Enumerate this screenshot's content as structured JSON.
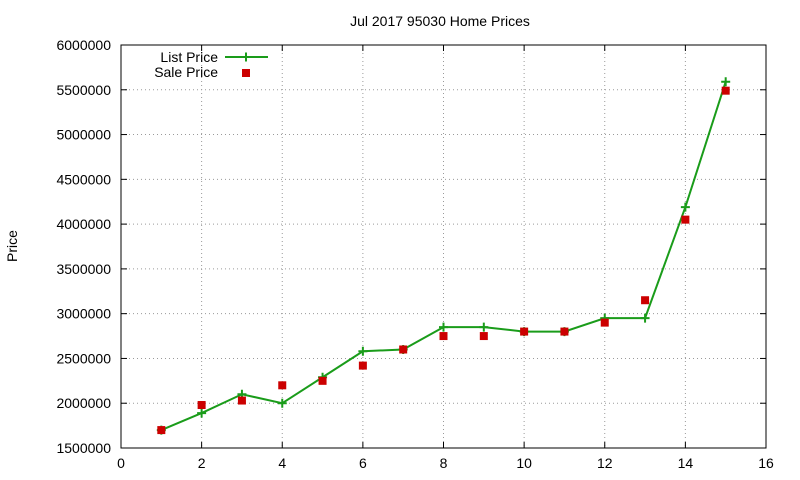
{
  "chart_data": {
    "type": "line",
    "title": "Jul 2017 95030 Home Prices",
    "xlabel": "",
    "ylabel": "Price",
    "xlim": [
      0,
      16
    ],
    "ylim": [
      1500000,
      6000000
    ],
    "xticks": [
      0,
      2,
      4,
      6,
      8,
      10,
      12,
      14,
      16
    ],
    "yticks": [
      1500000,
      2000000,
      2500000,
      3000000,
      3500000,
      4000000,
      4500000,
      5000000,
      5500000,
      6000000
    ],
    "grid": true,
    "legend_position": "top-left",
    "series": [
      {
        "name": "List Price",
        "style": "linespoints",
        "marker": "plus",
        "color": "#1a9c1a",
        "x": [
          1,
          2,
          3,
          4,
          5,
          6,
          7,
          8,
          9,
          10,
          11,
          12,
          13,
          14,
          15
        ],
        "y": [
          1700000,
          1890000,
          2100000,
          2000000,
          2290000,
          2580000,
          2600000,
          2850000,
          2850000,
          2800000,
          2800000,
          2950000,
          2950000,
          4190000,
          5590000
        ]
      },
      {
        "name": "Sale Price",
        "style": "points",
        "marker": "square",
        "color": "#cc0000",
        "x": [
          1,
          2,
          3,
          4,
          5,
          6,
          7,
          8,
          9,
          10,
          11,
          12,
          13,
          14,
          15
        ],
        "y": [
          1700000,
          1980000,
          2030000,
          2200000,
          2250000,
          2420000,
          2600000,
          2750000,
          2750000,
          2800000,
          2800000,
          2900000,
          3150000,
          4050000,
          5490000
        ]
      }
    ]
  }
}
